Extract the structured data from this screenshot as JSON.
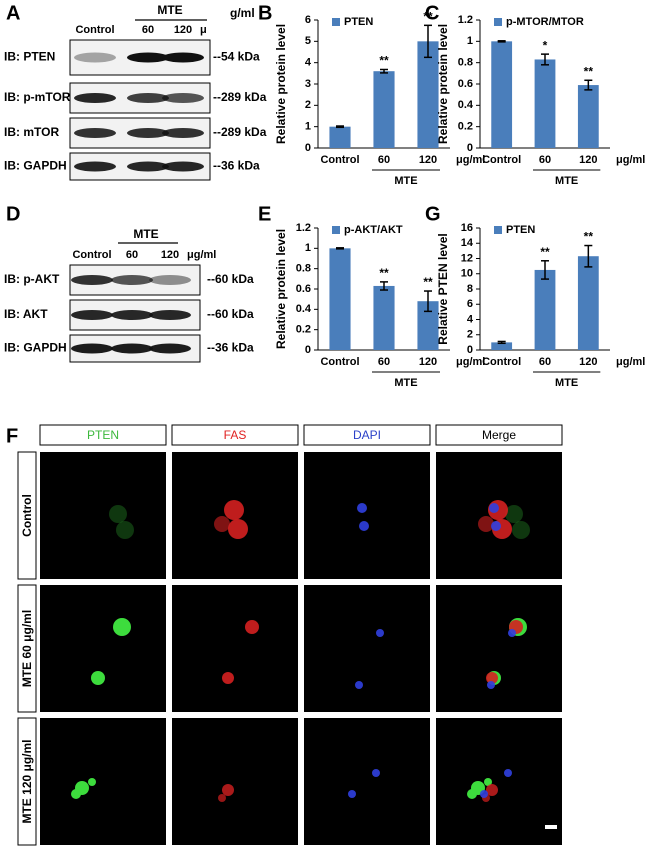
{
  "blots": [
    {
      "label": "A",
      "group": "MTE",
      "unit_prefix": "μ",
      "unit": "g/ml",
      "columns": [
        "Control",
        "60",
        "120"
      ],
      "rows": [
        {
          "name": "IB: PTEN",
          "size": "--54 kDa"
        },
        {
          "name": "IB: p-mTOR",
          "size": "--289 kDa"
        },
        {
          "name": "IB: mTOR",
          "size": "--289 kDa"
        },
        {
          "name": "IB: GAPDH",
          "size": "--36 kDa"
        }
      ]
    },
    {
      "label": "D",
      "group": "MTE",
      "unit": "μg/ml",
      "columns": [
        "Control",
        "60",
        "120"
      ],
      "rows": [
        {
          "name": "IB: p-AKT",
          "size": "--60 kDa"
        },
        {
          "name": "IB: AKT",
          "size": "--60 kDa"
        },
        {
          "name": "IB: GAPDH",
          "size": "--36 kDa"
        }
      ]
    }
  ],
  "chart_data": [
    {
      "type": "bar",
      "label": "B",
      "legend": "PTEN",
      "ylabel": "Relative protein level",
      "categories": [
        "Control",
        "60",
        "120"
      ],
      "group_label": "MTE",
      "unit": "μg/ml",
      "values": [
        1,
        3.6,
        5.0
      ],
      "errors": [
        0.03,
        0.08,
        0.75
      ],
      "annotations": [
        null,
        "**",
        "**"
      ],
      "color": "#4a7ebb",
      "ylim": [
        0,
        6
      ],
      "yticks": [
        0,
        1,
        2,
        3,
        4,
        5,
        6
      ]
    },
    {
      "type": "bar",
      "label": "C",
      "legend": "p-MTOR/MTOR",
      "ylabel": "Relative protein level",
      "categories": [
        "Control",
        "60",
        "120"
      ],
      "group_label": "MTE",
      "unit": "μg/ml",
      "values": [
        1,
        0.83,
        0.59
      ],
      "errors": [
        0.005,
        0.05,
        0.045
      ],
      "annotations": [
        null,
        "*",
        "**"
      ],
      "color": "#4a7ebb",
      "ylim": [
        0,
        1.2
      ],
      "yticks": [
        0,
        0.2,
        0.4,
        0.6,
        0.8,
        1,
        1.2
      ]
    },
    {
      "type": "bar",
      "label": "E",
      "legend": "p-AKT/AKT",
      "ylabel": "Relative protein level",
      "categories": [
        "Control",
        "60",
        "120"
      ],
      "group_label": "MTE",
      "unit": "μg/ml",
      "values": [
        1,
        0.63,
        0.48
      ],
      "errors": [
        0.005,
        0.04,
        0.1
      ],
      "annotations": [
        null,
        "**",
        "**"
      ],
      "color": "#4a7ebb",
      "ylim": [
        0,
        1.2
      ],
      "yticks": [
        0,
        0.2,
        0.4,
        0.6,
        0.8,
        1,
        1.2
      ]
    },
    {
      "type": "bar",
      "label": "G",
      "legend": "PTEN",
      "ylabel": "Relative PTEN level",
      "categories": [
        "Control",
        "60",
        "120"
      ],
      "group_label": "MTE",
      "unit": "μg/ml",
      "values": [
        1,
        10.5,
        12.3
      ],
      "errors": [
        0.12,
        1.2,
        1.4
      ],
      "annotations": [
        null,
        "**",
        "**"
      ],
      "color": "#4a7ebb",
      "ylim": [
        0,
        16
      ],
      "yticks": [
        0,
        2,
        4,
        6,
        8,
        10,
        12,
        14,
        16
      ]
    }
  ],
  "microscopy": {
    "label": "F",
    "columns": [
      "PTEN",
      "FAS",
      "DAPI",
      "Merge"
    ],
    "rows": [
      "Control",
      "MTE 60 μg/ml",
      "MTE 120 μg/ml"
    ]
  }
}
